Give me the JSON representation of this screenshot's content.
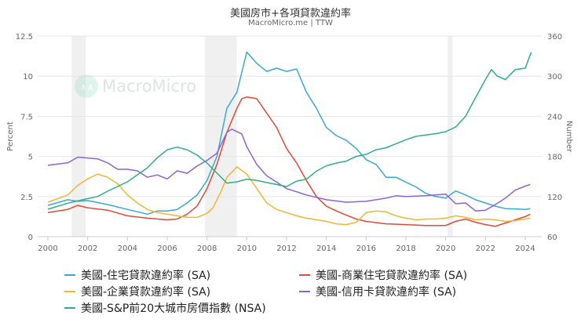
{
  "chart_data": {
    "type": "line",
    "title": "美國房市+各項貸款違約率",
    "subtitle": "MacroMicro.me | TTW",
    "watermark": "MacroMicro",
    "ylabel_left": "Percent",
    "ylabel_right": "Number",
    "xlim": [
      2000,
      2024.9
    ],
    "ylim_left": [
      0,
      12.5
    ],
    "ylim_right": [
      60,
      360
    ],
    "x_ticks": [
      "2000",
      "2002",
      "2004",
      "2006",
      "2008",
      "2010",
      "2012",
      "2014",
      "2016",
      "2018",
      "2020",
      "2022",
      "2024"
    ],
    "y_ticks_left": [
      "0",
      "2.5",
      "5",
      "7.5",
      "10",
      "12.5"
    ],
    "y_ticks_right": [
      "60",
      "120",
      "180",
      "240",
      "300",
      "360"
    ],
    "grid": true,
    "legend_position": "bottom",
    "recessions": [
      [
        2001.2,
        2001.9
      ],
      [
        2007.9,
        2009.5
      ],
      [
        2020.1,
        2020.35
      ]
    ],
    "series": [
      {
        "name": "美國-住宅貸款違約率 (SA)",
        "color": "#3aa8d4",
        "axis": "left",
        "x": [
          2000,
          2001,
          2001.5,
          2002,
          2003,
          2004,
          2005,
          2005.5,
          2006,
          2006.5,
          2007,
          2007.5,
          2008,
          2008.5,
          2009,
          2009.5,
          2010,
          2010.5,
          2011,
          2011.5,
          2012,
          2012.5,
          2013,
          2013.5,
          2014,
          2014.5,
          2015,
          2015.5,
          2016,
          2016.5,
          2017,
          2017.5,
          2018,
          2018.5,
          2019,
          2019.5,
          2020,
          2020.5,
          2021,
          2021.5,
          2022,
          2022.5,
          2023,
          2023.5,
          2024,
          2024.25
        ],
        "y": [
          1.95,
          2.3,
          2.2,
          2.25,
          2.0,
          1.7,
          1.4,
          1.6,
          1.6,
          1.7,
          2.1,
          2.6,
          3.5,
          5.0,
          8.0,
          9.0,
          11.5,
          10.8,
          10.3,
          10.5,
          10.3,
          10.45,
          9.0,
          8.0,
          6.8,
          6.3,
          6.0,
          5.5,
          4.8,
          4.5,
          3.7,
          3.7,
          3.4,
          3.1,
          2.7,
          2.5,
          2.4,
          2.85,
          2.6,
          2.3,
          2.1,
          1.9,
          1.75,
          1.73,
          1.7,
          1.75
        ]
      },
      {
        "name": "美國-商業住宅貸款違約率 (SA)",
        "color": "#e04a37",
        "axis": "left",
        "x": [
          2000,
          2001,
          2001.5,
          2002,
          2003,
          2004,
          2005,
          2006,
          2006.5,
          2007,
          2007.5,
          2008,
          2008.5,
          2009,
          2009.5,
          2009.75,
          2010,
          2010.5,
          2011,
          2011.5,
          2012,
          2012.5,
          2013,
          2013.5,
          2014,
          2014.5,
          2015,
          2015.5,
          2016,
          2017,
          2018,
          2019,
          2020,
          2020.5,
          2021,
          2021.5,
          2022,
          2022.5,
          2023,
          2023.5,
          2024,
          2024.25
        ],
        "y": [
          1.5,
          1.7,
          1.95,
          1.8,
          1.65,
          1.3,
          1.15,
          1.05,
          1.1,
          1.4,
          1.9,
          3.0,
          4.5,
          6.5,
          8.0,
          8.6,
          8.7,
          8.6,
          7.7,
          6.8,
          5.5,
          4.6,
          3.5,
          2.5,
          1.9,
          1.6,
          1.35,
          1.1,
          0.95,
          0.8,
          0.75,
          0.7,
          0.7,
          0.95,
          1.1,
          0.9,
          0.75,
          0.65,
          0.85,
          1.05,
          1.25,
          1.4
        ]
      },
      {
        "name": "美國-企業貸款違約率 (SA)",
        "color": "#f2b634",
        "axis": "left",
        "x": [
          2000,
          2001,
          2001.5,
          2002,
          2002.5,
          2003,
          2003.5,
          2004,
          2004.5,
          2005,
          2005.5,
          2006,
          2006.5,
          2007,
          2007.5,
          2008,
          2008.3,
          2008.7,
          2009,
          2009.5,
          2010,
          2010.5,
          2011,
          2011.5,
          2012,
          2012.5,
          2013,
          2014,
          2014.5,
          2015,
          2015.5,
          2016,
          2016.5,
          2017,
          2017.5,
          2018,
          2018.5,
          2019,
          2019.5,
          2020,
          2020.5,
          2021,
          2021.5,
          2022,
          2022.5,
          2023,
          2023.5,
          2024,
          2024.25
        ],
        "y": [
          2.15,
          2.6,
          3.2,
          3.6,
          3.9,
          3.7,
          3.3,
          2.6,
          2.1,
          1.7,
          1.5,
          1.4,
          1.3,
          1.2,
          1.2,
          1.45,
          1.8,
          2.8,
          3.7,
          4.35,
          3.9,
          3.0,
          2.1,
          1.7,
          1.5,
          1.3,
          1.15,
          0.95,
          0.8,
          0.75,
          0.9,
          1.5,
          1.6,
          1.55,
          1.3,
          1.15,
          1.05,
          1.1,
          1.1,
          1.15,
          1.3,
          1.2,
          1.05,
          1.1,
          1.05,
          0.95,
          1.0,
          1.1,
          1.15
        ]
      },
      {
        "name": "美國-信用卡貸款違約率 (SA)",
        "color": "#8a64d6",
        "axis": "left",
        "x": [
          2000,
          2001,
          2001.5,
          2002,
          2002.5,
          2003,
          2003.5,
          2004,
          2004.5,
          2005,
          2005.5,
          2006,
          2006.5,
          2007,
          2007.5,
          2008,
          2008.5,
          2009,
          2009.25,
          2009.75,
          2010,
          2010.5,
          2011,
          2011.5,
          2012,
          2012.5,
          2013,
          2013.5,
          2014,
          2015,
          2016,
          2017,
          2017.5,
          2018,
          2019,
          2019.5,
          2020,
          2020.5,
          2021,
          2021.5,
          2022,
          2022.5,
          2023,
          2023.5,
          2024,
          2024.25
        ],
        "y": [
          4.45,
          4.6,
          4.95,
          4.9,
          4.85,
          4.6,
          4.2,
          4.2,
          4.1,
          3.7,
          3.85,
          3.6,
          4.1,
          3.95,
          4.4,
          4.75,
          5.2,
          6.5,
          6.7,
          6.4,
          5.6,
          4.5,
          3.8,
          3.4,
          3.0,
          2.8,
          2.6,
          2.45,
          2.3,
          2.15,
          2.2,
          2.4,
          2.55,
          2.5,
          2.55,
          2.6,
          2.65,
          2.05,
          2.1,
          1.6,
          1.65,
          2.0,
          2.4,
          2.9,
          3.15,
          3.25
        ]
      },
      {
        "name": "美國-S&P前20大城市房價指數 (NSA)",
        "color": "#2fae86",
        "axis": "right",
        "x": [
          2000,
          2001,
          2002,
          2002.5,
          2003,
          2004,
          2005,
          2005.5,
          2006,
          2006.5,
          2007,
          2007.5,
          2008,
          2008.5,
          2009,
          2009.5,
          2010,
          2010.5,
          2011,
          2012,
          2012.5,
          2013,
          2013.5,
          2014,
          2014.5,
          2015,
          2015.5,
          2016,
          2016.5,
          2017,
          2017.5,
          2018,
          2018.5,
          2019,
          2019.5,
          2020,
          2020.5,
          2021,
          2021.5,
          2022,
          2022.3,
          2022.6,
          2023,
          2023.5,
          2024,
          2024.3
        ],
        "y": [
          101,
          110,
          117,
          120,
          128,
          142,
          163,
          178,
          190,
          194,
          190,
          182,
          170,
          155,
          140,
          142,
          146,
          144,
          141,
          135,
          143,
          146,
          158,
          166,
          170,
          173,
          180,
          183,
          190,
          193,
          199,
          205,
          210,
          212,
          214,
          217,
          224,
          240,
          268,
          295,
          310,
          300,
          295,
          310,
          312,
          336
        ]
      }
    ]
  }
}
